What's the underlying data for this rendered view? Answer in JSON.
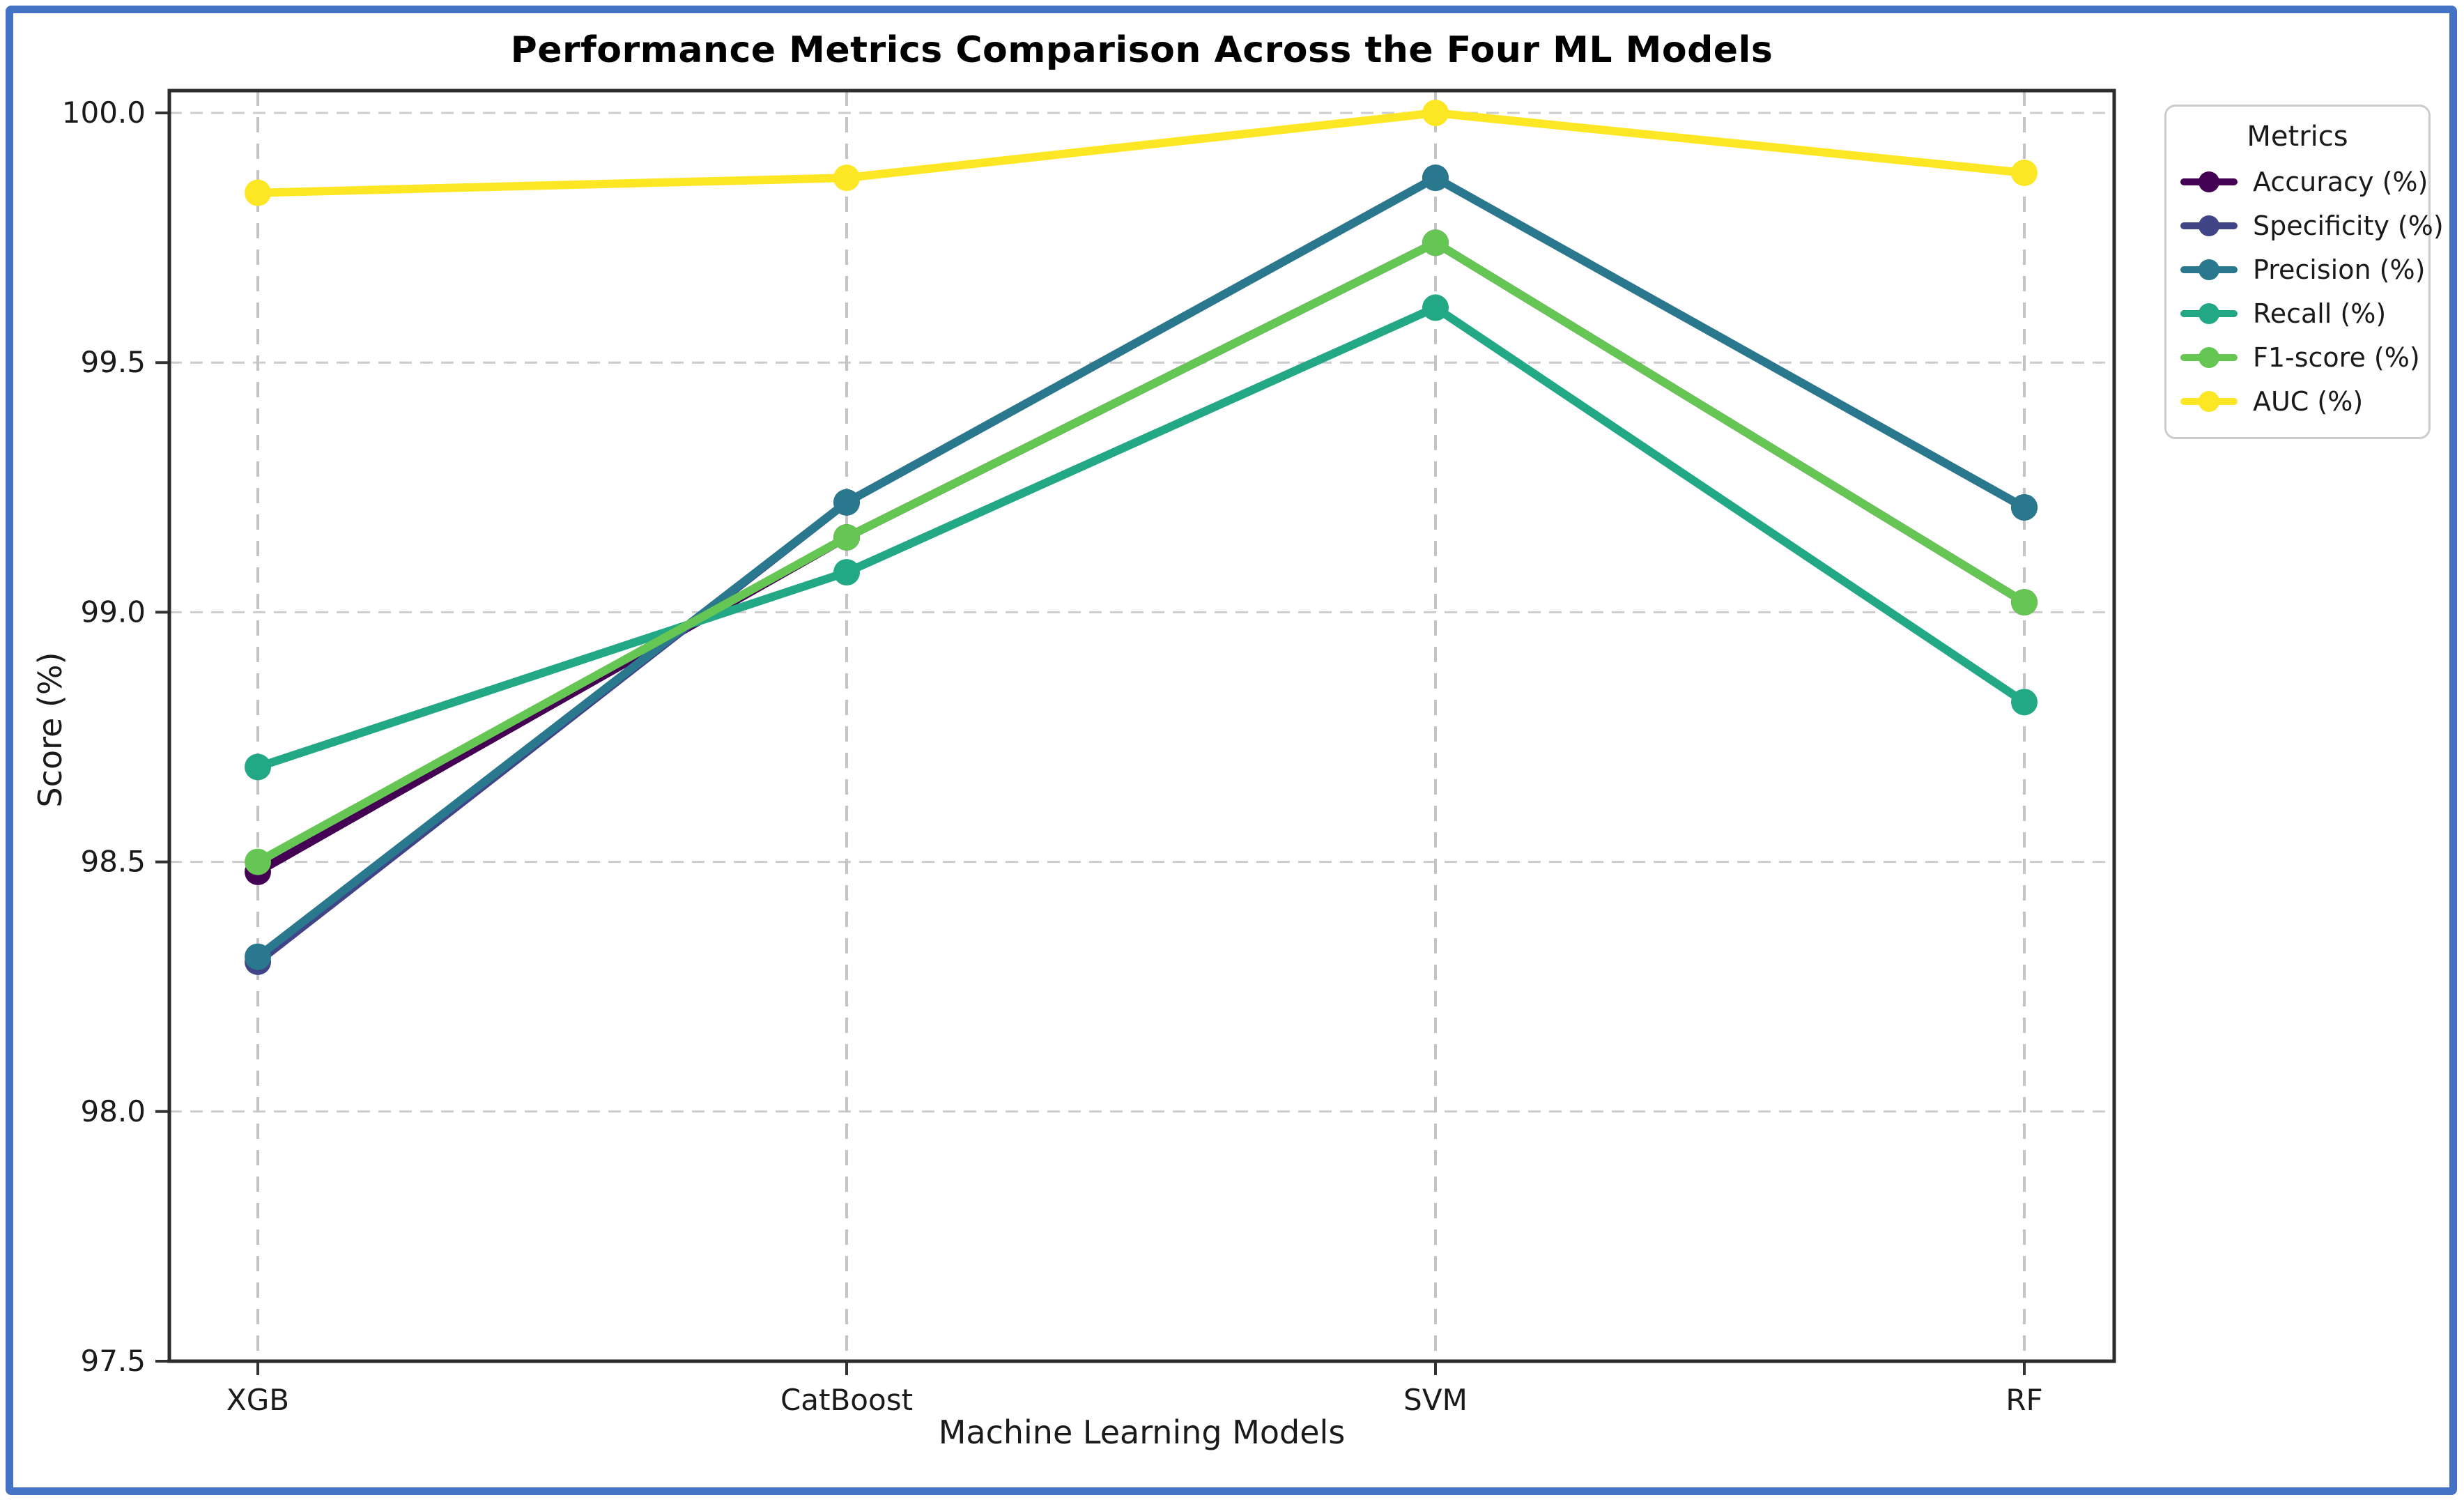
{
  "frame": {
    "border_color": "#4472c4"
  },
  "legend": {
    "title": "Metrics"
  },
  "chart_data": {
    "type": "line",
    "title": "Performance Metrics Comparison Across the Four ML Models",
    "xlabel": "Machine Learning Models",
    "ylabel": "Score (%)",
    "categories": [
      "XGB",
      "CatBoost",
      "SVM",
      "RF"
    ],
    "series": [
      {
        "name": "Accuracy (%)",
        "color": "#440154",
        "values": [
          98.48,
          99.15,
          99.74,
          99.02
        ]
      },
      {
        "name": "Specificity (%)",
        "color": "#414487",
        "values": [
          98.3,
          99.22,
          99.87,
          99.21
        ]
      },
      {
        "name": "Precision (%)",
        "color": "#2a788e",
        "values": [
          98.31,
          99.22,
          99.87,
          99.21
        ]
      },
      {
        "name": "Recall (%)",
        "color": "#22a884",
        "values": [
          98.69,
          99.08,
          99.61,
          98.82
        ]
      },
      {
        "name": "F1-score (%)",
        "color": "#66c653",
        "values": [
          98.5,
          99.15,
          99.74,
          99.02
        ]
      },
      {
        "name": "AUC (%)",
        "color": "#fde725",
        "values": [
          99.84,
          99.87,
          100.0,
          99.88
        ]
      }
    ],
    "ylim": [
      97.5,
      100.0
    ],
    "ytick_step": 0.5,
    "yticklabels": [
      "97.5",
      "98.0",
      "98.5",
      "99.0",
      "99.5",
      "100.0"
    ],
    "grid": true,
    "grid_style": "dashed",
    "legend_title": "Metrics",
    "legend_position": "outside upper right"
  }
}
